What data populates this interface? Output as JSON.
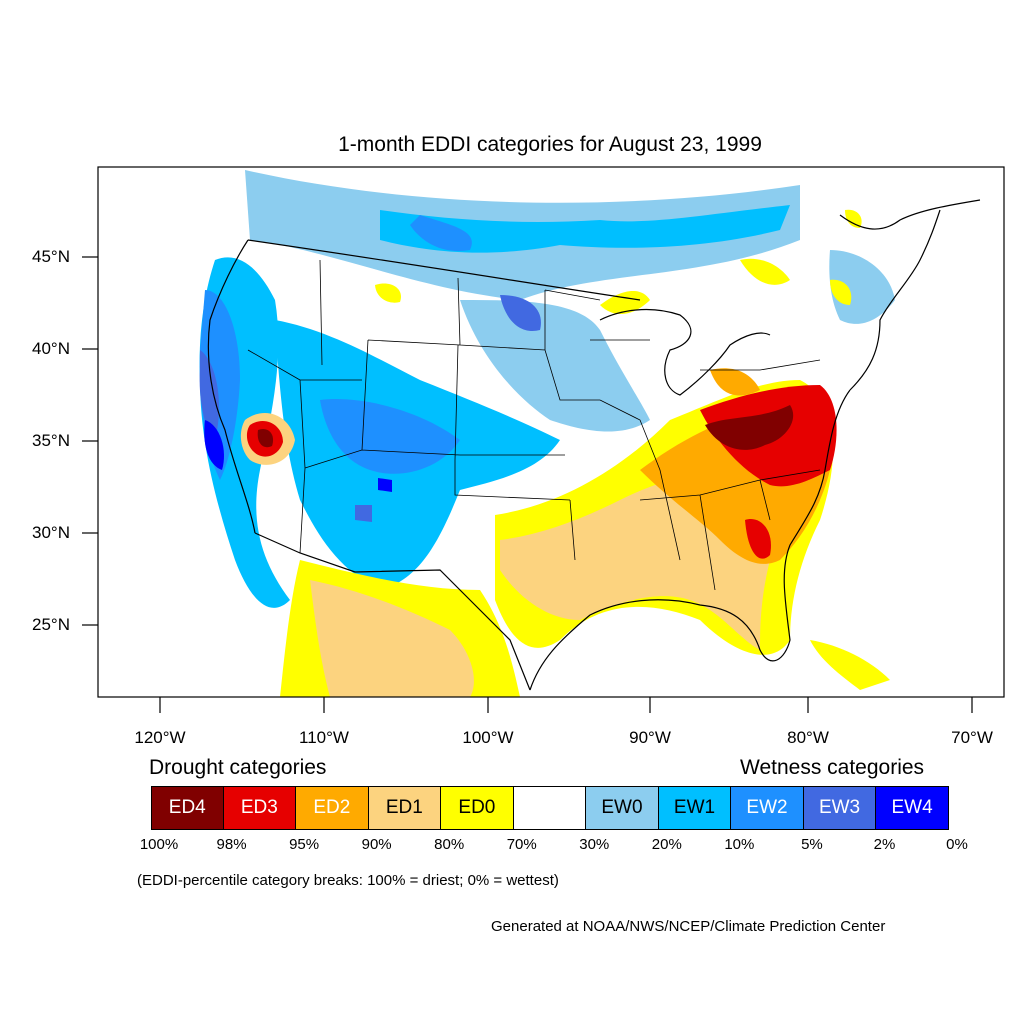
{
  "title": "1-month EDDI categories for August 23, 1999",
  "lat_ticks": [
    "45°N",
    "40°N",
    "35°N",
    "30°N",
    "25°N"
  ],
  "lon_ticks": [
    "120°W",
    "110°W",
    "100°W",
    "90°W",
    "80°W",
    "70°W"
  ],
  "legend": {
    "drought_title": "Drought categories",
    "wetness_title": "Wetness categories",
    "categories": [
      {
        "label": "ED4",
        "color": "#800000",
        "text_color": "#ffffff"
      },
      {
        "label": "ED3",
        "color": "#e60000",
        "text_color": "#ffffff"
      },
      {
        "label": "ED2",
        "color": "#ffaa00",
        "text_color": "#ffffff"
      },
      {
        "label": "ED1",
        "color": "#fcd37f",
        "text_color": "#000000"
      },
      {
        "label": "ED0",
        "color": "#ffff00",
        "text_color": "#000000"
      },
      {
        "label": "",
        "color": "#ffffff",
        "text_color": "#000000"
      },
      {
        "label": "EW0",
        "color": "#8ccdef",
        "text_color": "#000000"
      },
      {
        "label": "EW1",
        "color": "#00bfff",
        "text_color": "#000000"
      },
      {
        "label": "EW2",
        "color": "#1e90ff",
        "text_color": "#ffffff"
      },
      {
        "label": "EW3",
        "color": "#4169e1",
        "text_color": "#ffffff"
      },
      {
        "label": "EW4",
        "color": "#0000ff",
        "text_color": "#ffffff"
      }
    ],
    "percent_breaks": [
      "100%",
      "98%",
      "95%",
      "90%",
      "80%",
      "70%",
      "30%",
      "20%",
      "10%",
      "5%",
      "2%",
      "0%"
    ]
  },
  "note": "(EDDI-percentile category breaks: 100% = driest; 0% = wettest)",
  "credit": "Generated at NOAA/NWS/NCEP/Climate Prediction Center"
}
